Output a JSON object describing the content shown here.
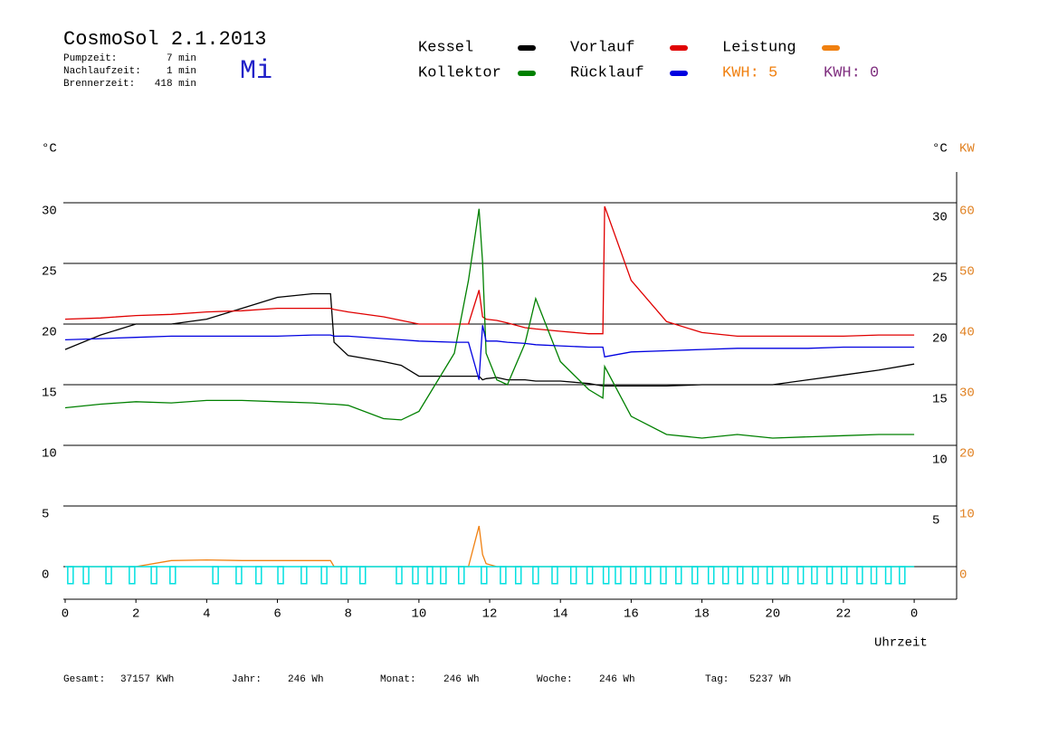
{
  "header": {
    "title": "CosmoSol 2.1.2013",
    "day": "Mi",
    "stats": [
      {
        "label": "Pumpzeit:",
        "value": "7 min"
      },
      {
        "label": "Nachlaufzeit:",
        "value": "1 min"
      },
      {
        "label": "Brennerzeit:",
        "value": "418 min"
      }
    ]
  },
  "chart_data": {
    "type": "line",
    "y_unit": "°C",
    "y_right_unit": "°C",
    "y2_unit": "KW",
    "x_label": "Uhrzeit",
    "x": [
      0,
      1,
      2,
      3,
      4,
      5,
      6,
      7,
      7.5,
      7.6,
      8,
      9,
      9.5,
      10,
      11,
      11.4,
      11.7,
      11.8,
      11.9,
      12.2,
      12.5,
      13,
      13.3,
      14,
      14.8,
      15.2,
      15.25,
      16,
      17,
      18,
      19,
      20,
      21,
      22,
      23,
      24
    ],
    "xlim": [
      0,
      25.2
    ],
    "xticks": [
      0,
      2,
      4,
      6,
      8,
      10,
      12,
      14,
      16,
      18,
      20,
      22,
      {
        "value": 24,
        "label": "0"
      }
    ],
    "ylim": [
      -2.7,
      32.5
    ],
    "yticks": [
      0,
      5,
      10,
      15,
      20,
      25,
      30
    ],
    "yticks_right": [
      5,
      10,
      15,
      20,
      25,
      30
    ],
    "y2lim": [
      -5.4,
      65
    ],
    "y2ticks": [
      0,
      10,
      20,
      30,
      40,
      50,
      60
    ],
    "grid": true,
    "series": [
      {
        "name": "Kessel",
        "color": "#000000",
        "values": [
          17.9,
          19.1,
          20.0,
          20.0,
          20.4,
          21.3,
          22.2,
          22.5,
          22.5,
          18.5,
          17.4,
          16.9,
          16.6,
          15.7,
          15.7,
          15.7,
          15.7,
          15.4,
          15.5,
          15.6,
          15.4,
          15.4,
          15.3,
          15.3,
          15.1,
          14.9,
          14.9,
          14.9,
          14.9,
          15.0,
          15.0,
          15.0,
          15.4,
          15.8,
          16.2,
          16.7
        ]
      },
      {
        "name": "Vorlauf",
        "color": "#e00000",
        "values": [
          20.4,
          20.5,
          20.7,
          20.8,
          21.0,
          21.1,
          21.3,
          21.3,
          21.3,
          21.2,
          21.0,
          20.6,
          20.3,
          20.0,
          20.0,
          20.0,
          22.8,
          20.6,
          20.4,
          20.3,
          20.1,
          19.7,
          19.6,
          19.4,
          19.2,
          19.2,
          29.7,
          23.6,
          20.2,
          19.3,
          19.0,
          19.0,
          19.0,
          19.0,
          19.1,
          19.1
        ]
      },
      {
        "name": "Leistung",
        "color": "#f08010",
        "axis": "y2",
        "values": [
          0,
          0,
          0,
          1.0,
          1.1,
          1.0,
          1.0,
          1.0,
          1.0,
          0,
          0,
          0,
          0,
          0,
          0,
          0,
          6.7,
          2.0,
          0.5,
          0,
          0,
          0,
          0,
          0,
          0,
          0,
          0,
          0,
          0,
          0,
          0,
          0,
          0,
          0,
          0,
          0
        ]
      },
      {
        "name": "Kollektor",
        "color": "#008000",
        "values": [
          13.1,
          13.4,
          13.6,
          13.5,
          13.7,
          13.7,
          13.6,
          13.5,
          13.4,
          13.4,
          13.3,
          12.2,
          12.1,
          12.8,
          17.6,
          23.6,
          29.5,
          25.1,
          17.6,
          15.4,
          15.0,
          18.4,
          22.1,
          16.9,
          14.6,
          13.9,
          16.5,
          12.4,
          10.9,
          10.6,
          10.9,
          10.6,
          10.7,
          10.8,
          10.9,
          10.9
        ]
      },
      {
        "name": "Rücklauf",
        "color": "#0000e0",
        "values": [
          18.7,
          18.8,
          18.9,
          19.0,
          19.0,
          19.0,
          19.0,
          19.1,
          19.1,
          19.0,
          19.0,
          18.8,
          18.7,
          18.6,
          18.5,
          18.5,
          15.4,
          19.9,
          18.6,
          18.6,
          18.5,
          18.4,
          18.3,
          18.2,
          18.1,
          18.1,
          17.3,
          17.7,
          17.8,
          17.9,
          18.0,
          18.0,
          18.0,
          18.1,
          18.1,
          18.1
        ]
      },
      {
        "color": "#00e0e0",
        "style": "pulse",
        "x": [
          0.15,
          0.59,
          1.23,
          1.89,
          2.51,
          3.04,
          4.25,
          4.91,
          5.47,
          6.09,
          6.75,
          7.32,
          7.88,
          8.41,
          9.44,
          9.9,
          10.31,
          10.69,
          11.2,
          11.84,
          12.38,
          12.81,
          13.3,
          13.84,
          14.37,
          14.83,
          15.29,
          15.63,
          16.06,
          16.47,
          16.91,
          17.34,
          17.8,
          18.26,
          18.67,
          19.08,
          19.51,
          19.92,
          20.36,
          20.79,
          21.18,
          21.61,
          22.02,
          22.46,
          22.86,
          23.27,
          23.66
        ],
        "values": [
          -1.4,
          -1.4,
          -1.4,
          -1.4,
          -1.4,
          -1.4,
          -1.4,
          -1.4,
          -1.4,
          -1.4,
          -1.4,
          -1.4,
          -1.4,
          -1.4,
          -1.4,
          -1.4,
          -1.4,
          -1.4,
          -1.4,
          -1.4,
          -1.4,
          -1.4,
          -1.4,
          -1.4,
          -1.4,
          -1.4,
          -1.4,
          -1.4,
          -1.4,
          -1.4,
          -1.4,
          -1.4,
          -1.4,
          -1.4,
          -1.4,
          -1.4,
          -1.4,
          -1.4,
          -1.4,
          -1.4,
          -1.4,
          -1.4,
          -1.4,
          -1.4,
          -1.4,
          -1.4,
          -1.4
        ]
      }
    ],
    "kwh_labels": [
      {
        "text": "KWH: 5",
        "color": "#f08010"
      },
      {
        "text": "KWH: 0",
        "color": "#803080"
      }
    ]
  },
  "footer": {
    "totals": [
      {
        "label": "Gesamt:",
        "value": "37157 KWh"
      },
      {
        "label": "Jahr:",
        "value": "246 Wh"
      },
      {
        "label": "Monat:",
        "value": "246 Wh"
      },
      {
        "label": "Woche:",
        "value": "246 Wh"
      },
      {
        "label": "Tag:",
        "value": "5237 Wh"
      }
    ]
  }
}
